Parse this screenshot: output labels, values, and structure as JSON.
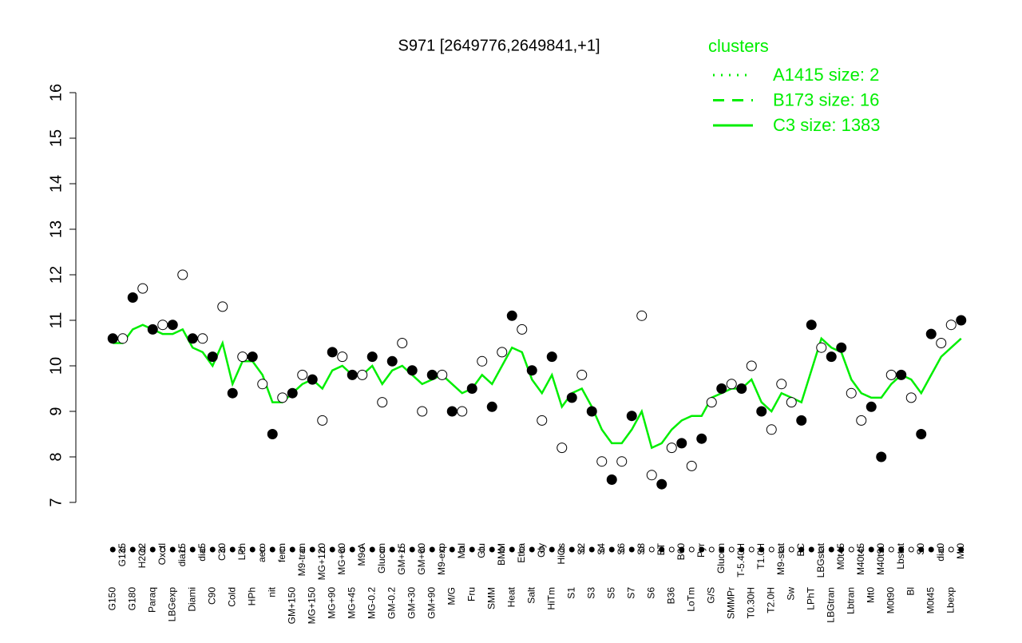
{
  "chart_data": {
    "type": "line",
    "title": "S971 [2649776,2649841,+1]",
    "legend_title": "clusters",
    "categories": [
      "G150",
      "G135",
      "G180",
      "H2O2",
      "Paraq",
      "Oxctl",
      "LBGexp",
      "dia15",
      "Diami",
      "dia5",
      "C90",
      "C30",
      "Cold",
      "LPh",
      "HPh",
      "aero",
      "nit",
      "ferm",
      "GM+150",
      "M9-tran",
      "MG+150",
      "MG+120",
      "MG+90",
      "MG+60",
      "MG+45",
      "M9-A",
      "MG-0.2",
      "Glucon",
      "GM-0.2",
      "GM+15",
      "GM+30",
      "GM+60",
      "GM+90",
      "M9-exp",
      "M/G",
      "Mal",
      "Fru",
      "Glu",
      "SMM",
      "BMM",
      "Heat",
      "Etha",
      "Salt",
      "Gly",
      "HiTm",
      "HiOs",
      "S1",
      "S2",
      "S3",
      "S4",
      "S5",
      "S6",
      "S7",
      "S8",
      "S6",
      "BT",
      "B36",
      "B60",
      "LoTm",
      "Pyr",
      "G/S",
      "Glucon",
      "SMMPr",
      "T-5.40H",
      "T0.30H",
      "T1.0H",
      "T2.0H",
      "M9-stat",
      "Sw",
      "BC",
      "LPhT",
      "LBGstat",
      "LBGtran",
      "M0t45",
      "Lbtran",
      "M40t45",
      "Mt0",
      "M40t90",
      "M0t90",
      "Lbstat",
      "Bl",
      "S0",
      "M0t45",
      "dia0",
      "Lbexp",
      "Mt0"
    ],
    "values": [
      10.6,
      10.6,
      11.5,
      11.7,
      10.8,
      10.9,
      10.9,
      12.0,
      10.6,
      10.6,
      10.2,
      11.3,
      9.4,
      10.2,
      10.2,
      9.6,
      8.5,
      9.3,
      9.4,
      9.8,
      9.7,
      8.8,
      10.3,
      10.2,
      9.8,
      9.8,
      10.2,
      9.2,
      10.1,
      10.5,
      9.9,
      9.0,
      9.8,
      9.8,
      9.0,
      9.0,
      9.5,
      10.1,
      9.1,
      10.3,
      11.1,
      10.8,
      9.9,
      8.8,
      10.2,
      8.2,
      9.3,
      9.8,
      9.0,
      7.9,
      7.5,
      7.9,
      8.9,
      11.1,
      7.6,
      7.4,
      8.2,
      8.3,
      7.8,
      8.4,
      9.2,
      9.5,
      9.6,
      9.5,
      10.0,
      9.0,
      8.6,
      9.6,
      9.2,
      8.8,
      10.9,
      10.4,
      10.2,
      10.4,
      9.4,
      8.8,
      9.1,
      8.0,
      9.8,
      9.8,
      9.3,
      8.5,
      10.7,
      10.5,
      10.9,
      11.0
    ],
    "point_fills": [
      "#000000",
      "#ffffff",
      "#000000",
      "#ffffff",
      "#000000",
      "#ffffff",
      "#000000",
      "#ffffff",
      "#000000",
      "#ffffff",
      "#000000",
      "#ffffff",
      "#000000",
      "#ffffff",
      "#000000",
      "#ffffff",
      "#000000",
      "#ffffff",
      "#000000",
      "#ffffff",
      "#000000",
      "#ffffff",
      "#000000",
      "#ffffff",
      "#000000",
      "#ffffff",
      "#000000",
      "#ffffff",
      "#000000",
      "#ffffff",
      "#000000",
      "#ffffff",
      "#000000",
      "#ffffff",
      "#000000",
      "#ffffff",
      "#000000",
      "#ffffff",
      "#000000",
      "#ffffff",
      "#000000",
      "#ffffff",
      "#000000",
      "#ffffff",
      "#000000",
      "#ffffff",
      "#000000",
      "#ffffff",
      "#000000",
      "#ffffff",
      "#000000",
      "#ffffff",
      "#000000",
      "#ffffff",
      "#ffffff",
      "#000000",
      "#ffffff",
      "#000000",
      "#ffffff",
      "#000000",
      "#ffffff",
      "#000000",
      "#ffffff",
      "#000000",
      "#ffffff",
      "#000000",
      "#ffffff",
      "#ffffff",
      "#ffffff",
      "#000000",
      "#000000",
      "#ffffff",
      "#000000",
      "#000000",
      "#ffffff",
      "#ffffff",
      "#000000",
      "#000000",
      "#ffffff",
      "#000000",
      "#ffffff",
      "#000000",
      "#000000",
      "#ffffff",
      "#ffffff",
      "#000000"
    ],
    "series": [
      {
        "name": "A1415 size: 2",
        "color": "#00ee00",
        "dash": "2,8"
      },
      {
        "name": "B173 size: 16",
        "color": "#00ee00",
        "dash": "14,10"
      },
      {
        "name": "C3 size: 1383",
        "color": "#00ee00",
        "dash": "none",
        "values": [
          10.5,
          10.5,
          10.8,
          10.9,
          10.8,
          10.7,
          10.7,
          10.8,
          10.4,
          10.3,
          10.0,
          10.5,
          9.6,
          10.1,
          10.1,
          9.8,
          9.2,
          9.2,
          9.4,
          9.6,
          9.7,
          9.5,
          9.9,
          10.0,
          9.8,
          9.8,
          10.0,
          9.6,
          9.9,
          10.0,
          9.8,
          9.6,
          9.7,
          9.8,
          9.6,
          9.4,
          9.5,
          9.8,
          9.6,
          10.0,
          10.4,
          10.3,
          9.7,
          9.4,
          9.8,
          9.1,
          9.4,
          9.5,
          9.1,
          8.6,
          8.3,
          8.3,
          8.6,
          9.0,
          8.2,
          8.3,
          8.6,
          8.8,
          8.9,
          8.9,
          9.3,
          9.4,
          9.5,
          9.5,
          9.7,
          9.2,
          9.0,
          9.4,
          9.3,
          9.2,
          9.9,
          10.6,
          10.4,
          10.3,
          9.7,
          9.4,
          9.3,
          9.3,
          9.6,
          9.8,
          9.7,
          9.4,
          9.8,
          10.2,
          10.4,
          10.6
        ]
      }
    ],
    "ylim": [
      7,
      16
    ],
    "yticks": [
      7,
      8,
      9,
      10,
      11,
      12,
      13,
      14,
      15,
      16
    ]
  }
}
